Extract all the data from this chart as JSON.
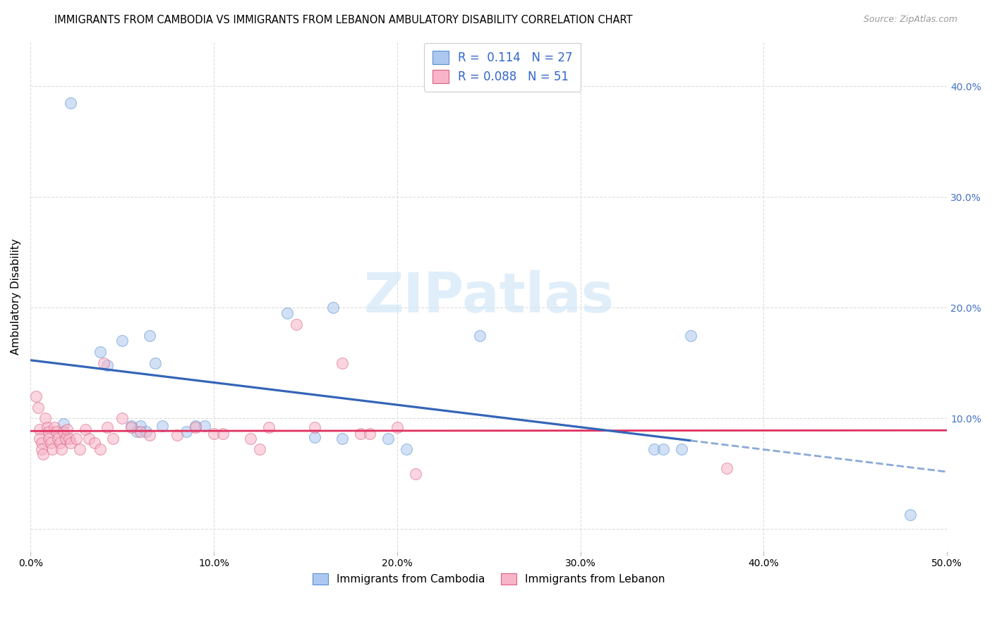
{
  "title": "IMMIGRANTS FROM CAMBODIA VS IMMIGRANTS FROM LEBANON AMBULATORY DISABILITY CORRELATION CHART",
  "source": "Source: ZipAtlas.com",
  "ylabel": "Ambulatory Disability",
  "xlim": [
    0.0,
    0.5
  ],
  "ylim": [
    -0.02,
    0.44
  ],
  "xticks": [
    0.0,
    0.1,
    0.2,
    0.3,
    0.4,
    0.5
  ],
  "yticks": [
    0.0,
    0.1,
    0.2,
    0.3,
    0.4
  ],
  "xtick_labels": [
    "0.0%",
    "10.0%",
    "20.0%",
    "30.0%",
    "40.0%",
    "50.0%"
  ],
  "ytick_labels_right": [
    "",
    "10.0%",
    "20.0%",
    "30.0%",
    "40.0%"
  ],
  "cambodia_fill": "#adc8f0",
  "cambodia_edge": "#5590d0",
  "lebanon_fill": "#f8b4c8",
  "lebanon_edge": "#d86080",
  "line_cambodia_color": "#3465b8",
  "line_lebanon_color": "#e03060",
  "R_cambodia": 0.114,
  "N_cambodia": 27,
  "R_lebanon": 0.088,
  "N_lebanon": 51,
  "cambodia_x": [
    0.018,
    0.022,
    0.038,
    0.042,
    0.05,
    0.055,
    0.058,
    0.06,
    0.063,
    0.065,
    0.068,
    0.072,
    0.085,
    0.09,
    0.095,
    0.14,
    0.155,
    0.165,
    0.17,
    0.195,
    0.205,
    0.245,
    0.34,
    0.345,
    0.355,
    0.36,
    0.48
  ],
  "cambodia_y": [
    0.095,
    0.385,
    0.16,
    0.148,
    0.17,
    0.093,
    0.088,
    0.093,
    0.088,
    0.175,
    0.15,
    0.093,
    0.088,
    0.093,
    0.093,
    0.195,
    0.083,
    0.2,
    0.082,
    0.082,
    0.072,
    0.175,
    0.072,
    0.072,
    0.072,
    0.175,
    0.013
  ],
  "lebanon_x": [
    0.003,
    0.004,
    0.005,
    0.005,
    0.006,
    0.006,
    0.007,
    0.008,
    0.009,
    0.01,
    0.01,
    0.011,
    0.012,
    0.013,
    0.014,
    0.015,
    0.016,
    0.017,
    0.018,
    0.019,
    0.02,
    0.021,
    0.022,
    0.025,
    0.027,
    0.03,
    0.032,
    0.035,
    0.038,
    0.04,
    0.042,
    0.045,
    0.05,
    0.055,
    0.06,
    0.065,
    0.08,
    0.09,
    0.1,
    0.105,
    0.12,
    0.125,
    0.13,
    0.145,
    0.155,
    0.17,
    0.18,
    0.185,
    0.2,
    0.21,
    0.38
  ],
  "lebanon_y": [
    0.12,
    0.11,
    0.09,
    0.082,
    0.078,
    0.072,
    0.068,
    0.1,
    0.092,
    0.088,
    0.082,
    0.078,
    0.072,
    0.092,
    0.088,
    0.082,
    0.078,
    0.072,
    0.088,
    0.082,
    0.09,
    0.082,
    0.078,
    0.082,
    0.072,
    0.09,
    0.082,
    0.078,
    0.072,
    0.15,
    0.092,
    0.082,
    0.1,
    0.092,
    0.088,
    0.085,
    0.085,
    0.092,
    0.086,
    0.086,
    0.082,
    0.072,
    0.092,
    0.185,
    0.092,
    0.15,
    0.086,
    0.086,
    0.092,
    0.05,
    0.055
  ],
  "watermark": "ZIPatlas",
  "background_color": "#ffffff",
  "grid_color": "#dddddd",
  "title_fontsize": 10.5,
  "source_fontsize": 9,
  "axis_label_fontsize": 11,
  "tick_fontsize": 10,
  "marker_size": 130,
  "marker_alpha": 0.55
}
